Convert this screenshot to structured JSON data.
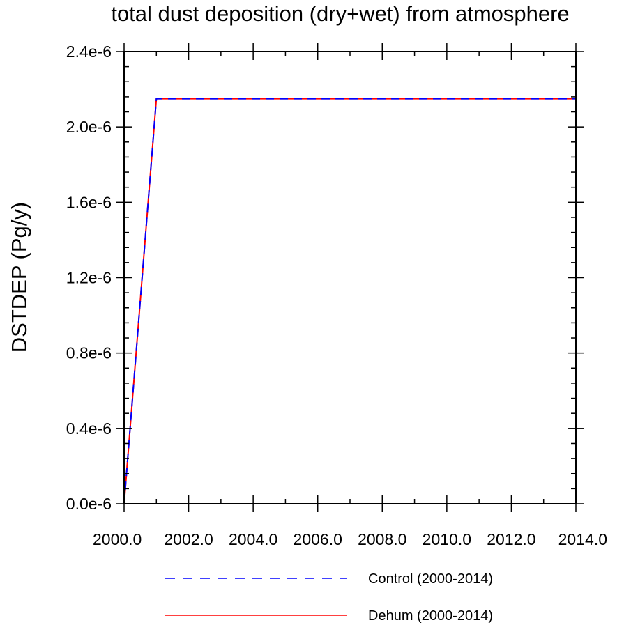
{
  "chart_data": {
    "type": "line",
    "title": "total dust deposition (dry+wet) from atmosphere",
    "xlabel": "",
    "ylabel": "DSTDEP  (Pg/y)",
    "xlim": [
      2000,
      2014
    ],
    "ylim": [
      0,
      2.4e-06
    ],
    "x_ticks": [
      2000,
      2002,
      2004,
      2006,
      2008,
      2010,
      2012,
      2014
    ],
    "x_tick_labels": [
      "2000.0",
      "2002.0",
      "2004.0",
      "2006.0",
      "2008.0",
      "2010.0",
      "2012.0",
      "2014.0"
    ],
    "y_ticks": [
      0,
      4e-07,
      8e-07,
      1.2e-06,
      1.6e-06,
      2e-06,
      2.4e-06
    ],
    "y_tick_labels": [
      "0.0e-6",
      "0.4e-6",
      "0.8e-6",
      "1.2e-6",
      "1.6e-6",
      "2.0e-6",
      "2.4e-6"
    ],
    "grid": false,
    "legend_position": "bottom",
    "x": [
      2000,
      2001,
      2002,
      2003,
      2004,
      2005,
      2006,
      2007,
      2008,
      2009,
      2010,
      2011,
      2012,
      2013,
      2014
    ],
    "series": [
      {
        "name": "Control (2000-2014)",
        "color": "#0000ff",
        "style": "dashed",
        "values": [
          0,
          2.15e-06,
          2.15e-06,
          2.15e-06,
          2.15e-06,
          2.15e-06,
          2.15e-06,
          2.15e-06,
          2.15e-06,
          2.15e-06,
          2.15e-06,
          2.15e-06,
          2.15e-06,
          2.15e-06,
          2.15e-06
        ]
      },
      {
        "name": "Dehum (2000-2014)",
        "color": "#ff0000",
        "style": "solid",
        "values": [
          0,
          2.15e-06,
          2.15e-06,
          2.15e-06,
          2.15e-06,
          2.15e-06,
          2.15e-06,
          2.15e-06,
          2.15e-06,
          2.15e-06,
          2.15e-06,
          2.15e-06,
          2.15e-06,
          2.15e-06,
          2.15e-06
        ]
      }
    ]
  }
}
